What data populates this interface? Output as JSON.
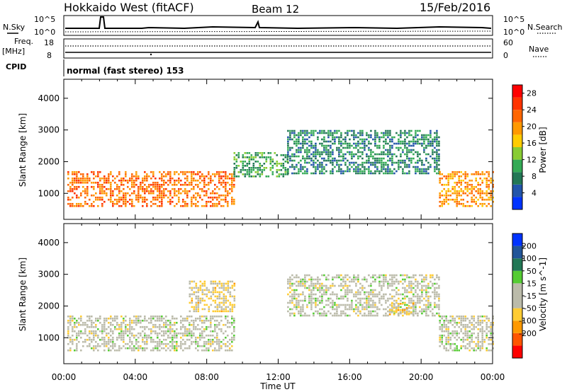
{
  "header": {
    "station": "Hokkaido West (fitACF)",
    "beam": "Beam 12",
    "date": "15/Feb/2016"
  },
  "noise_panel": {
    "left_label": "N.Sky",
    "right_label": "N.Search",
    "left_ticks": [
      "10^5",
      "10^0"
    ],
    "right_ticks": [
      "10^5",
      "10^0"
    ]
  },
  "freq_panel": {
    "left_label_1": "Freq.",
    "left_label_2": "[MHz]",
    "right_label": "Nave",
    "left_ticks": [
      "18",
      "8"
    ],
    "right_ticks": [
      "60",
      "0"
    ]
  },
  "cpid": {
    "label": "CPID",
    "value": "normal (fast stereo) 153"
  },
  "colors": {
    "power": [
      "#0033ff",
      "#2255aa",
      "#227755",
      "#33aa55",
      "#88cc33",
      "#ffcc00",
      "#ff9900",
      "#ff6600",
      "#ff3300",
      "#ff0000"
    ],
    "velocity": [
      "#ff0000",
      "#ff5500",
      "#ff9900",
      "#ffcc33",
      "#bbbbaa",
      "#bbbbaa",
      "#55cc33",
      "#227755",
      "#225599",
      "#0033ff"
    ]
  },
  "chart_data": [
    {
      "type": "heatmap",
      "panel": "power",
      "xlabel": "",
      "ylabel": "Slant Range [km]",
      "x_ticks": [
        "00:00",
        "04:00",
        "08:00",
        "12:00",
        "16:00",
        "20:00",
        "00:00"
      ],
      "y_ticks": [
        "1000",
        "2000",
        "3000",
        "4000"
      ],
      "ylim": [
        180,
        4600
      ],
      "xlim_hours": [
        0,
        24
      ],
      "colorbar_label": "Power [dB]",
      "colorbar_ticks": [
        "4",
        "8",
        "12",
        "16",
        "20",
        "24",
        "28"
      ],
      "colorbar_range": [
        0,
        30
      ],
      "regions_ut_hours_km_db": [
        {
          "t0": 0.2,
          "t1": 9.5,
          "r0": 600,
          "r1": 1700,
          "db": 22
        },
        {
          "t0": 9.5,
          "t1": 12.5,
          "r0": 1500,
          "r1": 2300,
          "db": 10
        },
        {
          "t0": 12.5,
          "t1": 21.0,
          "r0": 1600,
          "r1": 3000,
          "db": 8
        },
        {
          "t0": 21.0,
          "t1": 24.0,
          "r0": 600,
          "r1": 1700,
          "db": 20
        }
      ]
    },
    {
      "type": "heatmap",
      "panel": "velocity",
      "xlabel": "Time UT",
      "ylabel": "Slant Range [km]",
      "x_ticks": [
        "00:00",
        "04:00",
        "08:00",
        "12:00",
        "16:00",
        "20:00",
        "00:00"
      ],
      "y_ticks": [
        "1000",
        "2000",
        "3000",
        "4000"
      ],
      "ylim": [
        180,
        4600
      ],
      "xlim_hours": [
        0,
        24
      ],
      "colorbar_label": "Velocity [m s^-1]",
      "colorbar_ticks": [
        "200",
        "100",
        "50",
        "15",
        "-15",
        "-50",
        "-100",
        "-200"
      ],
      "colorbar_range": [
        -250,
        250
      ],
      "regions_ut_hours_km_ms": [
        {
          "t0": 0.2,
          "t1": 9.5,
          "r0": 600,
          "r1": 1700,
          "v": 0
        },
        {
          "t0": 7.0,
          "t1": 9.5,
          "r0": 1800,
          "r1": 2800,
          "v": -40
        },
        {
          "t0": 12.5,
          "t1": 21.0,
          "r0": 1700,
          "r1": 3000,
          "v": 0
        },
        {
          "t0": 18.2,
          "t1": 19.6,
          "r0": 1700,
          "r1": 2100,
          "v": -70
        },
        {
          "t0": 21.0,
          "t1": 24.0,
          "r0": 600,
          "r1": 1700,
          "v": 0
        }
      ]
    }
  ]
}
